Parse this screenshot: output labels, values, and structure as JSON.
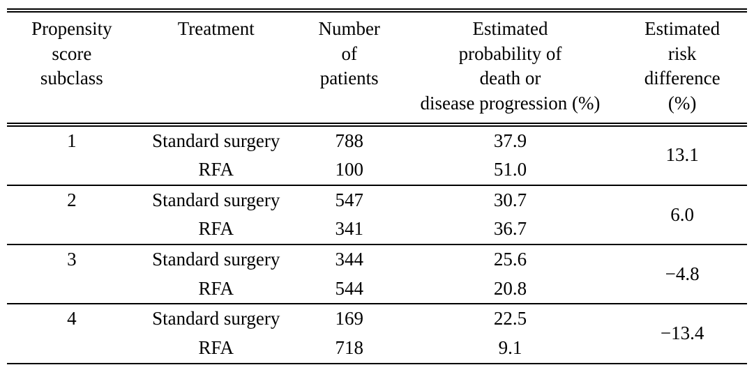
{
  "colors": {
    "text": "#000000",
    "background": "#ffffff",
    "rule": "#000000"
  },
  "table": {
    "headers": [
      {
        "label": "Propensity score subclass",
        "lines": [
          "Propensity",
          "score",
          "subclass"
        ]
      },
      {
        "label": "Treatment",
        "lines": [
          "Treatment"
        ]
      },
      {
        "label": "Number of patients",
        "lines": [
          "Number",
          "of",
          "patients"
        ]
      },
      {
        "label": "Estimated probability of death or disease progression (%)",
        "lines": [
          "Estimated",
          "probability of",
          "death or",
          "disease progression (%)"
        ]
      },
      {
        "label": "Estimated risk difference (%)",
        "lines": [
          "Estimated",
          "risk",
          "difference",
          "(%)"
        ]
      }
    ],
    "groups": [
      {
        "subclass": "1",
        "risk_difference": "13.1",
        "rows": [
          {
            "treatment": "Standard surgery",
            "patients": "788",
            "probability": "37.9"
          },
          {
            "treatment": "RFA",
            "patients": "100",
            "probability": "51.0"
          }
        ]
      },
      {
        "subclass": "2",
        "risk_difference": "6.0",
        "rows": [
          {
            "treatment": "Standard surgery",
            "patients": "547",
            "probability": "30.7"
          },
          {
            "treatment": "RFA",
            "patients": "341",
            "probability": "36.7"
          }
        ]
      },
      {
        "subclass": "3",
        "risk_difference": "−4.8",
        "rows": [
          {
            "treatment": "Standard surgery",
            "patients": "344",
            "probability": "25.6"
          },
          {
            "treatment": "RFA",
            "patients": "544",
            "probability": "20.8"
          }
        ]
      },
      {
        "subclass": "4",
        "risk_difference": "−13.4",
        "rows": [
          {
            "treatment": "Standard surgery",
            "patients": "169",
            "probability": "22.5"
          },
          {
            "treatment": "RFA",
            "patients": "718",
            "probability": "9.1"
          }
        ]
      }
    ]
  }
}
